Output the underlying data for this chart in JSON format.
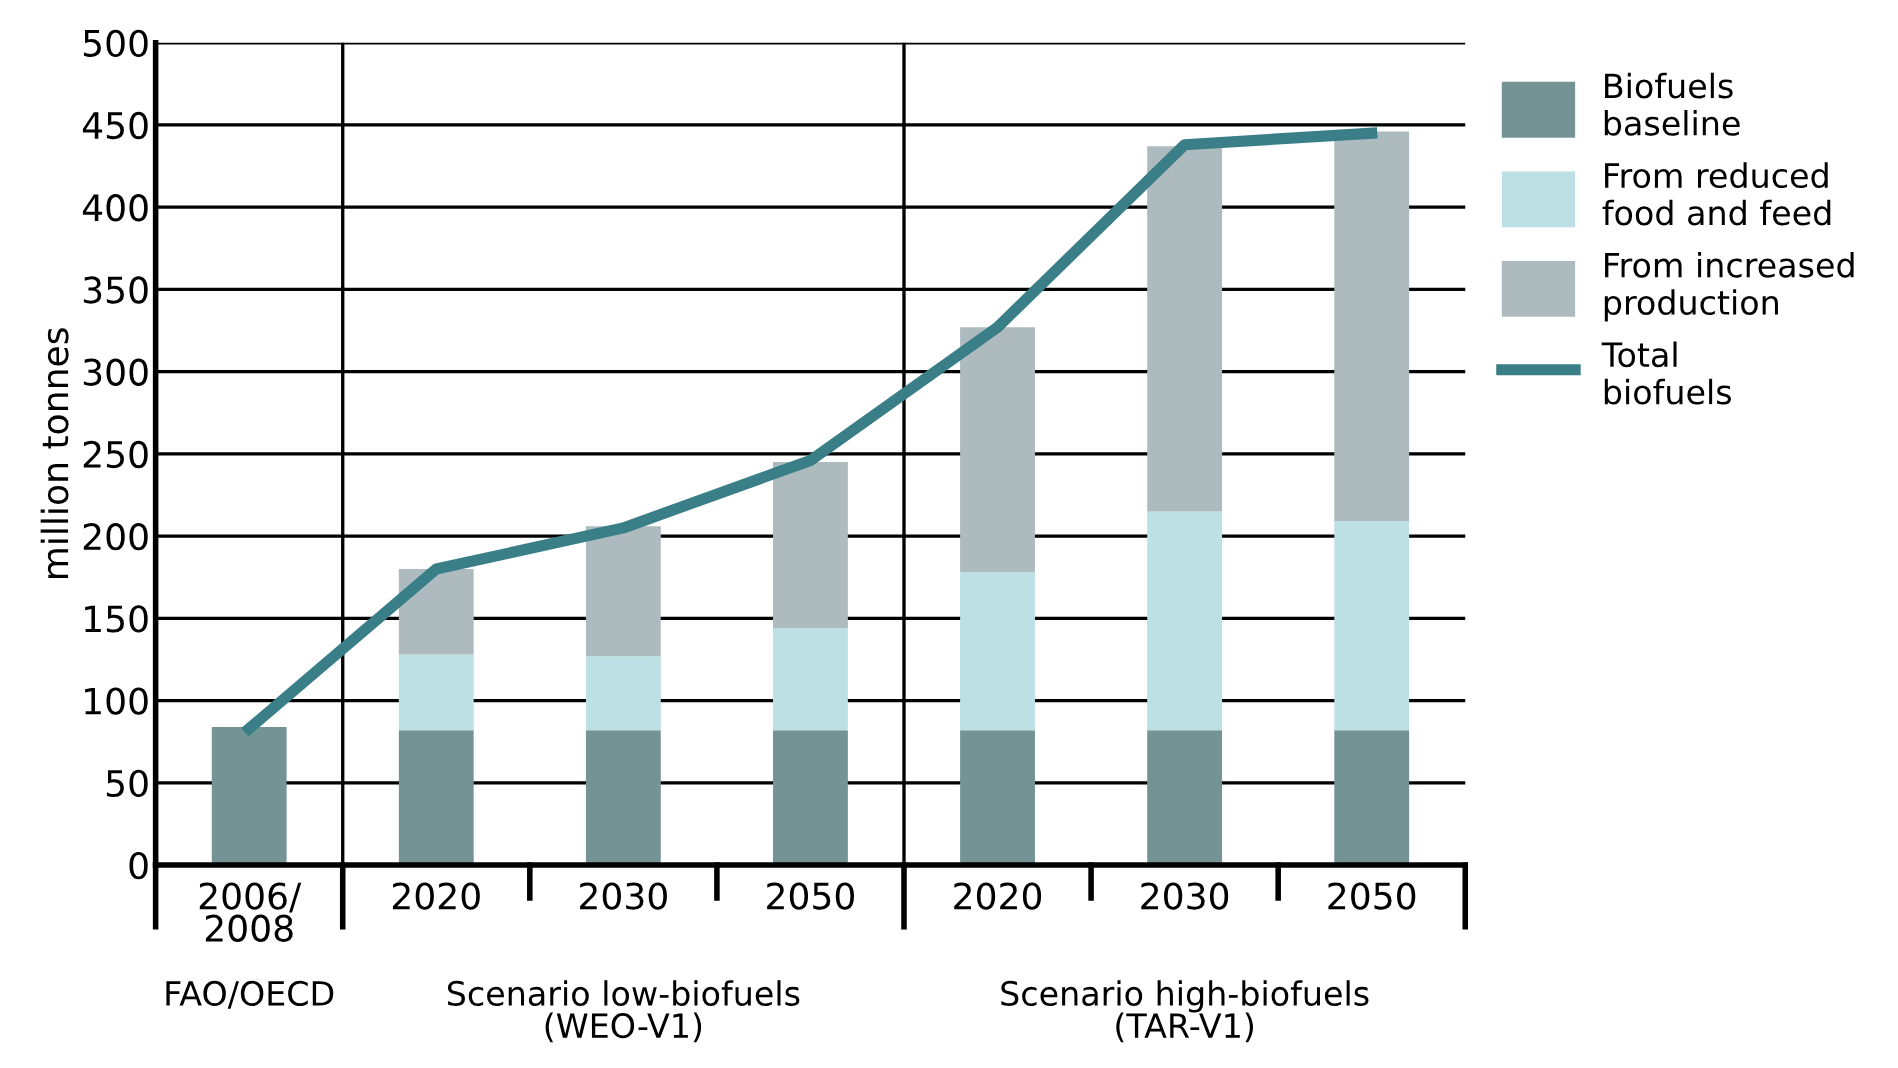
{
  "chart_data": {
    "type": "bar",
    "stacked": true,
    "ylabel": "million tonnes",
    "categories": [
      "2006/\n2008",
      "2020",
      "2030",
      "2050",
      "2020",
      "2030",
      "2050"
    ],
    "series": [
      {
        "name": "Biofuels\nbaseline",
        "color": "#739395",
        "values": [
          84,
          82,
          82,
          82,
          82,
          82,
          82
        ]
      },
      {
        "name": "From reduced\nfood and feed",
        "color": "#bce0e3",
        "values": [
          null,
          46,
          45,
          62,
          96,
          133,
          127
        ]
      },
      {
        "name": "From increased\nproduction",
        "color": "#adbabe",
        "values": [
          null,
          52,
          79,
          101,
          149,
          222,
          237
        ]
      },
      {
        "name": "Total\nbiofuels",
        "type": "line",
        "color": "#3a7f87",
        "values": [
          83,
          180,
          205,
          246,
          327,
          438,
          445
        ]
      }
    ],
    "ylim": [
      0,
      500
    ],
    "yticks": [
      0,
      50,
      100,
      150,
      200,
      250,
      300,
      350,
      400,
      450,
      500
    ],
    "grid": "y",
    "legend": "top right",
    "annotations": [
      "FAO/OECD",
      "Scenario low-biofuels\n(WEO-V1)",
      "Scenario high-biofuels\n(TAR-V1)"
    ]
  }
}
